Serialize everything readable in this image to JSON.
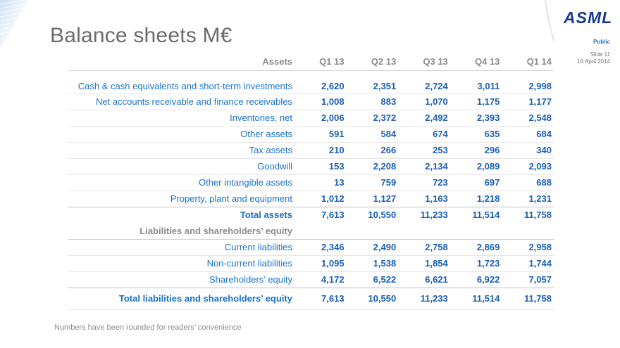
{
  "title": "Balance sheets M€",
  "logo": {
    "text": "ASML"
  },
  "header": {
    "classification": "Public",
    "slide": "Slide 11",
    "date": "16 April 2014"
  },
  "table": {
    "columns": [
      "Assets",
      "Q1 13",
      "Q2 13",
      "Q3 13",
      "Q4 13",
      "Q1 14"
    ],
    "rows": [
      {
        "label": "Cash & cash equivalents and short-term investments",
        "values": [
          "2,620",
          "2,351",
          "2,724",
          "3,011",
          "2,998"
        ]
      },
      {
        "label": "Net accounts receivable and finance receivables",
        "values": [
          "1,008",
          "883",
          "1,070",
          "1,175",
          "1,177"
        ]
      },
      {
        "label": "Inventories, net",
        "values": [
          "2,006",
          "2,372",
          "2,492",
          "2,393",
          "2,548"
        ]
      },
      {
        "label": "Other assets",
        "values": [
          "591",
          "584",
          "674",
          "635",
          "684"
        ]
      },
      {
        "label": "Tax assets",
        "values": [
          "210",
          "266",
          "253",
          "296",
          "340"
        ]
      },
      {
        "label": "Goodwill",
        "values": [
          "153",
          "2,208",
          "2,134",
          "2,089",
          "2,093"
        ]
      },
      {
        "label": "Other intangible assets",
        "values": [
          "13",
          "759",
          "723",
          "697",
          "688"
        ]
      },
      {
        "label": "Property, plant and equipment",
        "values": [
          "1,012",
          "1,127",
          "1,163",
          "1,218",
          "1,231"
        ]
      },
      {
        "label": "Total assets",
        "values": [
          "7,613",
          "10,550",
          "11,233",
          "11,514",
          "11,758"
        ]
      },
      {
        "label": "Liabilities and shareholders’ equity",
        "values": []
      },
      {
        "label": "Current liabilities",
        "values": [
          "2,346",
          "2,490",
          "2,758",
          "2,869",
          "2,958"
        ]
      },
      {
        "label": "Non-current liabilities",
        "values": [
          "1,095",
          "1,538",
          "1,854",
          "1,723",
          "1,744"
        ]
      },
      {
        "label": "Shareholders’ equity",
        "values": [
          "4,172",
          "6,522",
          "6,621",
          "6,922",
          "7,057"
        ]
      },
      {
        "label": "Total liabilities and shareholders’ equity",
        "values": [
          "7,613",
          "10,550",
          "11,233",
          "11,514",
          "11,758"
        ]
      }
    ]
  },
  "footnote": "Numbers have been rounded for readers’ convenience",
  "colors": {
    "brand": "#1a3a8f",
    "accent": "#1a72c9",
    "text_gray": "#8c8c8c"
  }
}
